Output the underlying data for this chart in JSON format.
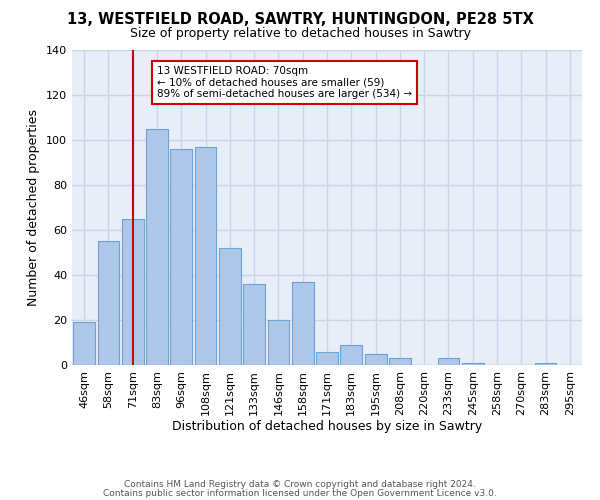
{
  "title": "13, WESTFIELD ROAD, SAWTRY, HUNTINGDON, PE28 5TX",
  "subtitle": "Size of property relative to detached houses in Sawtry",
  "xlabel": "Distribution of detached houses by size in Sawtry",
  "ylabel": "Number of detached properties",
  "bar_labels": [
    "46sqm",
    "58sqm",
    "71sqm",
    "83sqm",
    "96sqm",
    "108sqm",
    "121sqm",
    "133sqm",
    "146sqm",
    "158sqm",
    "171sqm",
    "183sqm",
    "195sqm",
    "208sqm",
    "220sqm",
    "233sqm",
    "245sqm",
    "258sqm",
    "270sqm",
    "283sqm",
    "295sqm"
  ],
  "bar_values": [
    19,
    55,
    65,
    105,
    96,
    97,
    52,
    36,
    20,
    37,
    6,
    9,
    5,
    3,
    0,
    3,
    1,
    0,
    0,
    1,
    0
  ],
  "bar_color": "#aec6e8",
  "bar_edge_color": "#6da3d4",
  "bar_edge_width": 0.8,
  "bg_color": "#e8eef8",
  "grid_color": "#c8d4e8",
  "vline_x_index": 2,
  "vline_color": "#cc0000",
  "annotation_title": "13 WESTFIELD ROAD: 70sqm",
  "annotation_line1": "← 10% of detached houses are smaller (59)",
  "annotation_line2": "89% of semi-detached houses are larger (534) →",
  "annotation_box_facecolor": "#ffffff",
  "annotation_box_edgecolor": "#cc0000",
  "ylim": [
    0,
    140
  ],
  "yticks": [
    0,
    20,
    40,
    60,
    80,
    100,
    120,
    140
  ],
  "footer1": "Contains HM Land Registry data © Crown copyright and database right 2024.",
  "footer2": "Contains public sector information licensed under the Open Government Licence v3.0."
}
